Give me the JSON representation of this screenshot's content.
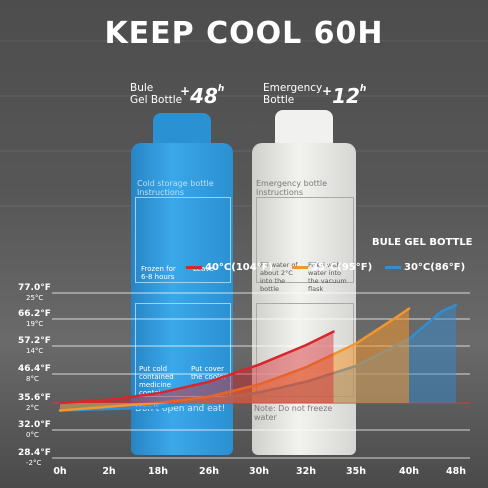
{
  "title": "KEEP COOL 60H",
  "labels": {
    "blue_bottle": [
      "Bule",
      "Gel Bottle"
    ],
    "blue_badge": "48",
    "blue_badge_unit": "h",
    "emergency_bottle": [
      "Emergency",
      "Bottle"
    ],
    "emergency_badge": "12",
    "emergency_badge_unit": "h",
    "plus": "+"
  },
  "bottle_text": {
    "blue_header": "Cold storage bottle Instructions",
    "blue_step": "Frozen for 6-8 hours",
    "blue_step2": "Leave",
    "blue_step3": "Put cold contained medicine contai",
    "blue_step4": "Put cover the cooler",
    "blue_footer": "Don't open and eat!",
    "white_header": "Emergency bottle Instructions",
    "white_step": "Fill water of about 2°C into the bottle",
    "white_step2": "Filled with water into the vacuum flask",
    "white_footer": "Note: Do not freeze water"
  },
  "colors": {
    "red": "#d8262b",
    "orange": "#f2962e",
    "blue": "#2e8fd6",
    "highlight": "#e8343a",
    "blue_bottle": "#2f9fe0",
    "white_bottle": "#e6e6e3"
  },
  "chart_data": {
    "type": "area",
    "title": "BULE GEL BOTTLE",
    "x_ticks": [
      "0h",
      "2h",
      "18h",
      "26h",
      "30h",
      "32h",
      "35h",
      "40h",
      "48h"
    ],
    "y_ticks": [
      {
        "f": "77.0°F",
        "c": "25°C",
        "value": 77.0
      },
      {
        "f": "66.2°F",
        "c": "19°C",
        "value": 66.2
      },
      {
        "f": "57.2°F",
        "c": "14°C",
        "value": 57.2
      },
      {
        "f": "46.4°F",
        "c": "8°C",
        "value": 46.4
      },
      {
        "f": "35.6°F",
        "c": "2°C",
        "value": 35.6,
        "highlight": true
      },
      {
        "f": "32.0°F",
        "c": "0°C",
        "value": 32.0
      },
      {
        "f": "28.4°F",
        "c": "-2°C",
        "value": 28.4
      }
    ],
    "series": [
      {
        "name": "40°C(104°F)",
        "color": "red",
        "points": [
          [
            0,
            35.6
          ],
          [
            1,
            36.8
          ],
          [
            2,
            39.2
          ],
          [
            3,
            43.5
          ],
          [
            4,
            50.0
          ],
          [
            5,
            57.5
          ],
          [
            5.55,
            62.0
          ]
        ]
      },
      {
        "name": "35°C(95°F)",
        "color": "orange",
        "points": [
          [
            0,
            34.6
          ],
          [
            2,
            35.6
          ],
          [
            3,
            38.0
          ],
          [
            4,
            42.5
          ],
          [
            5,
            49.0
          ],
          [
            6,
            58.0
          ],
          [
            6.8,
            67.5
          ],
          [
            7,
            70.5
          ]
        ]
      },
      {
        "name": "30°C(86°F)",
        "color": "blue",
        "points": [
          [
            0,
            34.6
          ],
          [
            2,
            35.0
          ],
          [
            3,
            36.5
          ],
          [
            4,
            39.5
          ],
          [
            5,
            43.5
          ],
          [
            6,
            49.5
          ],
          [
            7,
            59.5
          ],
          [
            7.7,
            69.5
          ],
          [
            8,
            72.0
          ]
        ]
      }
    ]
  }
}
